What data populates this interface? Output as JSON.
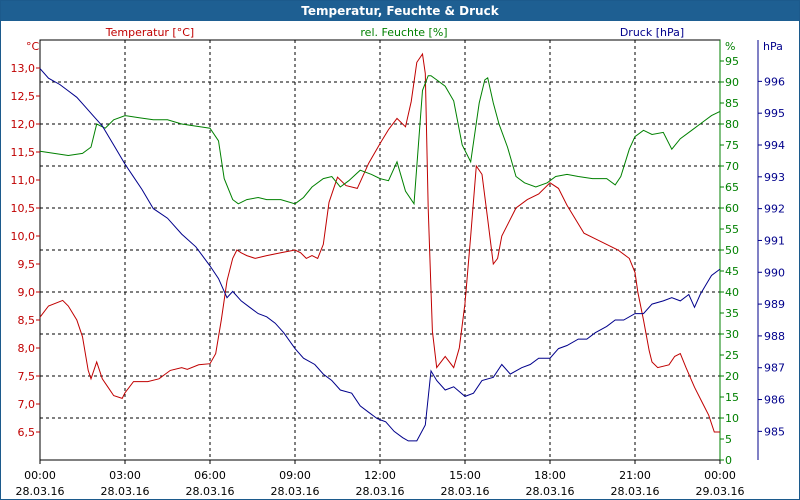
{
  "chart_data": {
    "type": "line",
    "title": "Temperatur, Feuchte & Druck",
    "x_ticks": [
      {
        "time": "00:00",
        "date": "28.03.16"
      },
      {
        "time": "03:00",
        "date": "28.03.16"
      },
      {
        "time": "06:00",
        "date": "28.03.16"
      },
      {
        "time": "09:00",
        "date": "28.03.16"
      },
      {
        "time": "12:00",
        "date": "28.03.16"
      },
      {
        "time": "15:00",
        "date": "28.03.16"
      },
      {
        "time": "18:00",
        "date": "28.03.16"
      },
      {
        "time": "21:00",
        "date": "28.03.16"
      },
      {
        "time": "00:00",
        "date": "29.03.16"
      }
    ],
    "x_unit": "hours",
    "xlim": [
      0,
      24
    ],
    "grid": true,
    "axes": {
      "temperature": {
        "label": "Temperatur [°C]",
        "unit": "°C",
        "color": "#c00000",
        "ylim": [
          6.0,
          13.5
        ],
        "ticks": [
          6.5,
          7.0,
          7.5,
          8.0,
          8.5,
          9.0,
          9.5,
          10.0,
          10.5,
          11.0,
          11.5,
          12.0,
          12.5,
          13.0
        ],
        "tick_labels": [
          "6,5",
          "7,0",
          "7,5",
          "8,0",
          "8,5",
          "9,0",
          "9,5",
          "10,0",
          "10,5",
          "11,0",
          "11,5",
          "12,0",
          "12,5",
          "13,0"
        ]
      },
      "humidity": {
        "label": "rel. Feuchte [%]",
        "unit": "%",
        "color": "#008000",
        "ylim": [
          0,
          100
        ],
        "ticks": [
          0,
          5,
          10,
          15,
          20,
          25,
          30,
          35,
          40,
          45,
          50,
          55,
          60,
          65,
          70,
          75,
          80,
          85,
          90,
          95
        ]
      },
      "pressure": {
        "label": "Druck [hPa]",
        "unit": "hPa",
        "color": "#00008b",
        "ylim": [
          984.1,
          997.3
        ],
        "ticks": [
          985,
          986,
          987,
          988,
          989,
          990,
          991,
          992,
          993,
          994,
          995,
          996
        ]
      }
    },
    "series": [
      {
        "name": "Temperatur [°C]",
        "axis": "temperature",
        "color": "#c00000",
        "x": [
          0,
          0.3,
          0.8,
          1.0,
          1.3,
          1.5,
          1.7,
          1.8,
          2.0,
          2.2,
          2.4,
          2.6,
          2.9,
          3.0,
          3.3,
          3.5,
          3.8,
          4.2,
          4.6,
          5.0,
          5.2,
          5.6,
          6.0,
          6.2,
          6.4,
          6.6,
          6.8,
          6.95,
          7.1,
          7.3,
          7.6,
          8.0,
          8.5,
          9.0,
          9.2,
          9.4,
          9.6,
          9.8,
          10.0,
          10.2,
          10.5,
          10.8,
          11.2,
          11.6,
          12.0,
          12.3,
          12.6,
          12.9,
          13.1,
          13.3,
          13.5,
          13.6,
          13.7,
          13.85,
          14.0,
          14.3,
          14.6,
          14.8,
          15.0,
          15.2,
          15.4,
          15.6,
          15.8,
          16.0,
          16.15,
          16.3,
          16.5,
          16.8,
          17.2,
          17.6,
          18.0,
          18.3,
          18.6,
          18.9,
          19.2,
          19.6,
          20.0,
          20.4,
          20.8,
          21.0,
          21.1,
          21.3,
          21.5,
          21.6,
          21.8,
          22.2,
          22.4,
          22.6,
          22.8,
          23.1,
          23.4,
          23.6,
          23.8,
          24.0
        ],
        "y": [
          8.55,
          8.75,
          8.85,
          8.75,
          8.5,
          8.2,
          7.6,
          7.45,
          7.75,
          7.45,
          7.3,
          7.15,
          7.1,
          7.2,
          7.4,
          7.4,
          7.4,
          7.45,
          7.6,
          7.65,
          7.62,
          7.7,
          7.72,
          7.9,
          8.5,
          9.2,
          9.6,
          9.75,
          9.7,
          9.65,
          9.6,
          9.65,
          9.7,
          9.75,
          9.7,
          9.6,
          9.65,
          9.6,
          9.85,
          10.6,
          11.05,
          10.9,
          10.85,
          11.3,
          11.65,
          11.9,
          12.1,
          11.95,
          12.4,
          13.1,
          13.25,
          12.9,
          10.5,
          8.3,
          7.65,
          7.85,
          7.65,
          8.0,
          8.8,
          10.0,
          11.25,
          11.1,
          10.3,
          9.5,
          9.6,
          10.0,
          10.2,
          10.5,
          10.65,
          10.75,
          10.95,
          10.85,
          10.55,
          10.3,
          10.05,
          9.95,
          9.85,
          9.75,
          9.6,
          9.35,
          9.0,
          8.5,
          7.95,
          7.75,
          7.65,
          7.7,
          7.85,
          7.9,
          7.65,
          7.3,
          7.0,
          6.8,
          6.5,
          6.5
        ]
      },
      {
        "name": "rel. Feuchte [%]",
        "axis": "humidity",
        "color": "#008000",
        "x": [
          0,
          0.5,
          1.0,
          1.5,
          1.8,
          2.0,
          2.3,
          2.6,
          3.0,
          3.5,
          4.0,
          4.5,
          5.0,
          5.5,
          6.0,
          6.3,
          6.5,
          6.8,
          7.0,
          7.3,
          7.7,
          8.0,
          8.5,
          9.0,
          9.3,
          9.6,
          10.0,
          10.3,
          10.6,
          10.9,
          11.3,
          11.7,
          12.0,
          12.3,
          12.6,
          12.9,
          13.2,
          13.5,
          13.7,
          13.8,
          14.0,
          14.3,
          14.6,
          14.9,
          15.2,
          15.5,
          15.7,
          15.8,
          16.0,
          16.2,
          16.5,
          16.8,
          17.1,
          17.5,
          17.9,
          18.2,
          18.6,
          19.0,
          19.5,
          20.0,
          20.3,
          20.5,
          20.8,
          21.0,
          21.3,
          21.6,
          22.0,
          22.3,
          22.6,
          23.0,
          23.4,
          23.7,
          24.0
        ],
        "y": [
          73.5,
          73,
          72.5,
          73,
          74.5,
          80,
          79,
          81,
          82,
          81.5,
          81,
          81,
          80,
          79.5,
          79,
          76,
          67,
          62,
          61,
          62,
          62.5,
          62,
          62,
          61,
          62.5,
          65,
          67,
          67.5,
          65,
          66.5,
          69,
          68,
          67,
          66.5,
          71,
          64,
          61,
          88,
          91.5,
          91.5,
          90.5,
          89,
          85.5,
          75,
          71,
          85,
          90.5,
          91,
          85,
          80,
          74.5,
          67.5,
          66,
          65,
          66,
          67.5,
          68,
          67.5,
          67,
          67,
          65.5,
          67.5,
          74,
          77,
          78.5,
          77.5,
          78,
          74,
          76.5,
          78.5,
          80.5,
          82,
          83
        ]
      },
      {
        "name": "Druck [hPa]",
        "axis": "pressure",
        "color": "#00008b",
        "x": [
          0,
          0.3,
          0.7,
          1.0,
          1.3,
          1.6,
          1.9,
          2.2,
          2.6,
          3.0,
          3.3,
          3.6,
          4.0,
          4.5,
          5.0,
          5.5,
          6.0,
          6.3,
          6.6,
          6.8,
          7.1,
          7.4,
          7.7,
          8.0,
          8.3,
          8.6,
          9.0,
          9.3,
          9.7,
          10.0,
          10.3,
          10.6,
          11.0,
          11.3,
          11.6,
          11.9,
          12.2,
          12.5,
          12.8,
          13.0,
          13.3,
          13.6,
          13.8,
          14.0,
          14.3,
          14.6,
          15.0,
          15.3,
          15.6,
          16.0,
          16.3,
          16.6,
          17.0,
          17.3,
          17.6,
          18.0,
          18.3,
          18.6,
          19.0,
          19.3,
          19.6,
          20.0,
          20.3,
          20.6,
          21.0,
          21.3,
          21.6,
          22.0,
          22.3,
          22.6,
          22.9,
          23.1,
          23.3,
          23.5,
          23.7,
          24.0
        ],
        "y": [
          996.4,
          996.1,
          995.9,
          995.7,
          995.5,
          995.2,
          994.9,
          994.6,
          994.0,
          993.4,
          993.0,
          992.6,
          992.0,
          991.7,
          991.2,
          990.8,
          990.2,
          989.8,
          989.2,
          989.4,
          989.1,
          988.9,
          988.7,
          988.6,
          988.4,
          988.1,
          987.6,
          987.3,
          987.1,
          986.8,
          986.6,
          986.3,
          986.2,
          985.8,
          985.6,
          985.4,
          985.3,
          985.0,
          984.8,
          984.7,
          984.7,
          985.2,
          986.9,
          986.6,
          986.3,
          986.4,
          986.1,
          986.2,
          986.6,
          986.7,
          987.1,
          986.8,
          987.0,
          987.1,
          987.3,
          987.3,
          987.6,
          987.7,
          987.9,
          987.9,
          988.1,
          988.3,
          988.5,
          988.5,
          988.7,
          988.7,
          989.0,
          989.1,
          989.2,
          989.1,
          989.3,
          988.9,
          989.3,
          989.6,
          989.9,
          990.1
        ]
      }
    ]
  }
}
